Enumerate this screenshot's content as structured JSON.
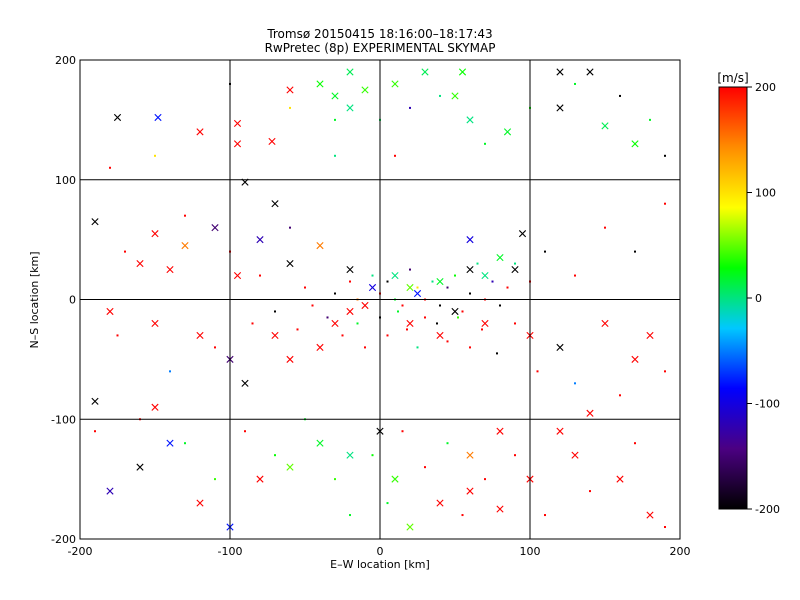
{
  "chart_data": {
    "type": "scatter",
    "title": "Tromsø 20150415 18:16:00–18:17:43",
    "subtitle": "RwPretec (8p) EXPERIMENTAL SKYMAP",
    "xlabel": "E–W location [km]",
    "ylabel": "N–S location [km]",
    "xlim": [
      -200,
      200
    ],
    "ylim": [
      -200,
      200
    ],
    "x_ticks": [
      "-200",
      "-100",
      "0",
      "100",
      "200"
    ],
    "y_ticks": [
      "-200",
      "-100",
      "0",
      "100",
      "200"
    ],
    "grid": true,
    "colorbar": {
      "label": "[m/s]",
      "range": [
        -200,
        200
      ],
      "ticks": [
        "200",
        "100",
        "0",
        "-100",
        "-200"
      ],
      "colors": [
        "#000000",
        "#4b0082",
        "#0000ff",
        "#00c8ff",
        "#00ff00",
        "#ffff00",
        "#ff8c00",
        "#ff0000"
      ]
    },
    "series": [
      {
        "marker": "cross",
        "points": [
          [
            -175,
            152,
            -200
          ],
          [
            -148,
            152,
            -80
          ],
          [
            -120,
            140,
            200
          ],
          [
            -95,
            147,
            200
          ],
          [
            -95,
            130,
            200
          ],
          [
            -72,
            132,
            200
          ],
          [
            -90,
            98,
            -200
          ],
          [
            -60,
            175,
            200
          ],
          [
            -70,
            80,
            -200
          ],
          [
            -40,
            180,
            30
          ],
          [
            -30,
            170,
            20
          ],
          [
            -20,
            190,
            10
          ],
          [
            -10,
            175,
            40
          ],
          [
            -20,
            160,
            0
          ],
          [
            10,
            180,
            40
          ],
          [
            30,
            190,
            10
          ],
          [
            50,
            170,
            40
          ],
          [
            55,
            190,
            30
          ],
          [
            60,
            150,
            0
          ],
          [
            85,
            140,
            20
          ],
          [
            120,
            190,
            -200
          ],
          [
            140,
            190,
            -200
          ],
          [
            120,
            160,
            -200
          ],
          [
            150,
            145,
            10
          ],
          [
            170,
            130,
            30
          ],
          [
            -190,
            65,
            -200
          ],
          [
            -150,
            55,
            200
          ],
          [
            -130,
            45,
            150
          ],
          [
            -110,
            60,
            -150
          ],
          [
            -140,
            25,
            200
          ],
          [
            -160,
            30,
            200
          ],
          [
            -95,
            20,
            200
          ],
          [
            -80,
            50,
            -120
          ],
          [
            -60,
            30,
            -200
          ],
          [
            -40,
            45,
            150
          ],
          [
            -20,
            25,
            -200
          ],
          [
            10,
            20,
            0
          ],
          [
            20,
            10,
            50
          ],
          [
            40,
            15,
            20
          ],
          [
            60,
            25,
            -200
          ],
          [
            70,
            20,
            0
          ],
          [
            80,
            35,
            20
          ],
          [
            60,
            50,
            -100
          ],
          [
            90,
            25,
            -200
          ],
          [
            95,
            55,
            -200
          ],
          [
            -5,
            10,
            -100
          ],
          [
            25,
            5,
            -80
          ],
          [
            -180,
            -10,
            200
          ],
          [
            -150,
            -20,
            200
          ],
          [
            -120,
            -30,
            200
          ],
          [
            -100,
            -50,
            -150
          ],
          [
            -90,
            -70,
            -200
          ],
          [
            -70,
            -30,
            200
          ],
          [
            -60,
            -50,
            200
          ],
          [
            -40,
            -40,
            200
          ],
          [
            -30,
            -20,
            200
          ],
          [
            -20,
            -10,
            200
          ],
          [
            -10,
            -5,
            200
          ],
          [
            20,
            -20,
            200
          ],
          [
            40,
            -30,
            200
          ],
          [
            50,
            -10,
            -200
          ],
          [
            70,
            -20,
            200
          ],
          [
            100,
            -30,
            200
          ],
          [
            120,
            -40,
            -200
          ],
          [
            150,
            -20,
            200
          ],
          [
            170,
            -50,
            200
          ],
          [
            180,
            -30,
            200
          ],
          [
            -190,
            -85,
            -200
          ],
          [
            -150,
            -90,
            200
          ],
          [
            -140,
            -120,
            -80
          ],
          [
            -180,
            -160,
            -120
          ],
          [
            -160,
            -140,
            -200
          ],
          [
            -120,
            -170,
            200
          ],
          [
            -100,
            -190,
            -80
          ],
          [
            -80,
            -150,
            200
          ],
          [
            -60,
            -140,
            50
          ],
          [
            -40,
            -120,
            20
          ],
          [
            -20,
            -130,
            0
          ],
          [
            0,
            -110,
            -200
          ],
          [
            10,
            -150,
            40
          ],
          [
            20,
            -190,
            50
          ],
          [
            40,
            -170,
            200
          ],
          [
            60,
            -160,
            200
          ],
          [
            80,
            -175,
            200
          ],
          [
            100,
            -150,
            200
          ],
          [
            60,
            -130,
            150
          ],
          [
            80,
            -110,
            200
          ],
          [
            130,
            -130,
            200
          ],
          [
            160,
            -150,
            200
          ],
          [
            180,
            -180,
            200
          ],
          [
            120,
            -110,
            200
          ],
          [
            140,
            -95,
            200
          ]
        ]
      },
      {
        "marker": "dot",
        "points": [
          [
            -180,
            110,
            200
          ],
          [
            -150,
            120,
            100
          ],
          [
            -100,
            180,
            -200
          ],
          [
            -60,
            160,
            100
          ],
          [
            -30,
            150,
            20
          ],
          [
            0,
            150,
            10
          ],
          [
            20,
            160,
            -120
          ],
          [
            40,
            170,
            0
          ],
          [
            70,
            130,
            20
          ],
          [
            100,
            160,
            30
          ],
          [
            130,
            180,
            20
          ],
          [
            160,
            170,
            -200
          ],
          [
            180,
            150,
            20
          ],
          [
            190,
            120,
            -200
          ],
          [
            -30,
            120,
            0
          ],
          [
            10,
            120,
            200
          ],
          [
            -170,
            40,
            200
          ],
          [
            -130,
            70,
            200
          ],
          [
            -100,
            40,
            200
          ],
          [
            -80,
            20,
            200
          ],
          [
            -60,
            60,
            -150
          ],
          [
            -50,
            10,
            200
          ],
          [
            -30,
            5,
            -200
          ],
          [
            -20,
            15,
            200
          ],
          [
            -15,
            0,
            150
          ],
          [
            -5,
            20,
            0
          ],
          [
            0,
            5,
            200
          ],
          [
            5,
            15,
            -200
          ],
          [
            10,
            0,
            20
          ],
          [
            15,
            -5,
            200
          ],
          [
            20,
            25,
            -150
          ],
          [
            25,
            10,
            100
          ],
          [
            30,
            0,
            200
          ],
          [
            35,
            15,
            0
          ],
          [
            40,
            -5,
            -200
          ],
          [
            45,
            10,
            -150
          ],
          [
            50,
            20,
            30
          ],
          [
            55,
            -10,
            200
          ],
          [
            60,
            5,
            -200
          ],
          [
            65,
            30,
            0
          ],
          [
            70,
            0,
            200
          ],
          [
            75,
            15,
            -120
          ],
          [
            80,
            -5,
            -200
          ],
          [
            85,
            10,
            200
          ],
          [
            90,
            30,
            0
          ],
          [
            100,
            15,
            200
          ],
          [
            110,
            40,
            -200
          ],
          [
            130,
            20,
            200
          ],
          [
            150,
            60,
            200
          ],
          [
            170,
            40,
            -200
          ],
          [
            190,
            80,
            200
          ],
          [
            -175,
            -30,
            200
          ],
          [
            -140,
            -60,
            -50
          ],
          [
            -110,
            -40,
            200
          ],
          [
            -85,
            -20,
            200
          ],
          [
            -70,
            -10,
            -200
          ],
          [
            -55,
            -25,
            200
          ],
          [
            -45,
            -5,
            200
          ],
          [
            -35,
            -15,
            -150
          ],
          [
            -25,
            -30,
            200
          ],
          [
            -15,
            -20,
            20
          ],
          [
            -10,
            -40,
            200
          ],
          [
            0,
            -15,
            -200
          ],
          [
            5,
            -30,
            200
          ],
          [
            12,
            -10,
            20
          ],
          [
            18,
            -25,
            200
          ],
          [
            25,
            -40,
            0
          ],
          [
            30,
            -15,
            200
          ],
          [
            38,
            -20,
            -200
          ],
          [
            45,
            -35,
            200
          ],
          [
            52,
            -15,
            40
          ],
          [
            60,
            -40,
            200
          ],
          [
            68,
            -25,
            200
          ],
          [
            78,
            -45,
            -200
          ],
          [
            90,
            -20,
            200
          ],
          [
            105,
            -60,
            200
          ],
          [
            130,
            -70,
            -50
          ],
          [
            160,
            -80,
            200
          ],
          [
            190,
            -60,
            200
          ],
          [
            -190,
            -110,
            200
          ],
          [
            -160,
            -100,
            200
          ],
          [
            -130,
            -120,
            20
          ],
          [
            -110,
            -150,
            40
          ],
          [
            -90,
            -110,
            200
          ],
          [
            -70,
            -130,
            30
          ],
          [
            -50,
            -100,
            20
          ],
          [
            -30,
            -150,
            40
          ],
          [
            -20,
            -180,
            20
          ],
          [
            -5,
            -130,
            30
          ],
          [
            5,
            -170,
            20
          ],
          [
            15,
            -110,
            200
          ],
          [
            30,
            -140,
            200
          ],
          [
            45,
            -120,
            20
          ],
          [
            55,
            -180,
            200
          ],
          [
            70,
            -150,
            200
          ],
          [
            90,
            -130,
            200
          ],
          [
            110,
            -180,
            200
          ],
          [
            140,
            -160,
            200
          ],
          [
            170,
            -120,
            200
          ],
          [
            190,
            -190,
            200
          ]
        ]
      }
    ]
  }
}
